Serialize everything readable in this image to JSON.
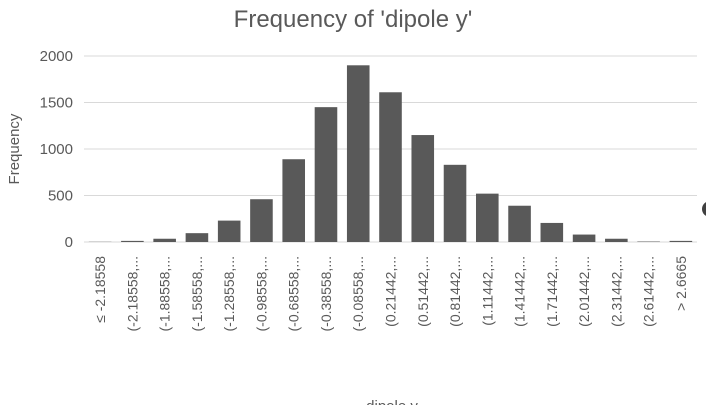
{
  "chart_data": {
    "type": "bar",
    "title": "Frequency of 'dipole y'",
    "xlabel": "dipole y",
    "ylabel": "Frequency",
    "ylim": [
      0,
      2000
    ],
    "yticks": [
      0,
      500,
      1000,
      1500,
      2000
    ],
    "grid": true,
    "categories": [
      "≤ -2.18558",
      "(-2.18558,...",
      "(-1.88558,...",
      "(-1.58558,...",
      "(-1.28558,...",
      "(-0.98558,...",
      "(-0.68558,...",
      "(-0.38558,...",
      "(-0.08558,...",
      "(0.21442,...",
      "(0.51442,...",
      "(0.81442,...",
      "(1.11442,...",
      "(1.41442,...",
      "(1.71442,...",
      "(2.01442,...",
      "(2.31442,...",
      "(2.61442,...",
      "> 2.6665"
    ],
    "values": [
      2,
      12,
      35,
      95,
      230,
      460,
      890,
      1450,
      1900,
      1610,
      1150,
      830,
      520,
      390,
      205,
      80,
      35,
      5,
      12
    ],
    "color": "#595959"
  }
}
